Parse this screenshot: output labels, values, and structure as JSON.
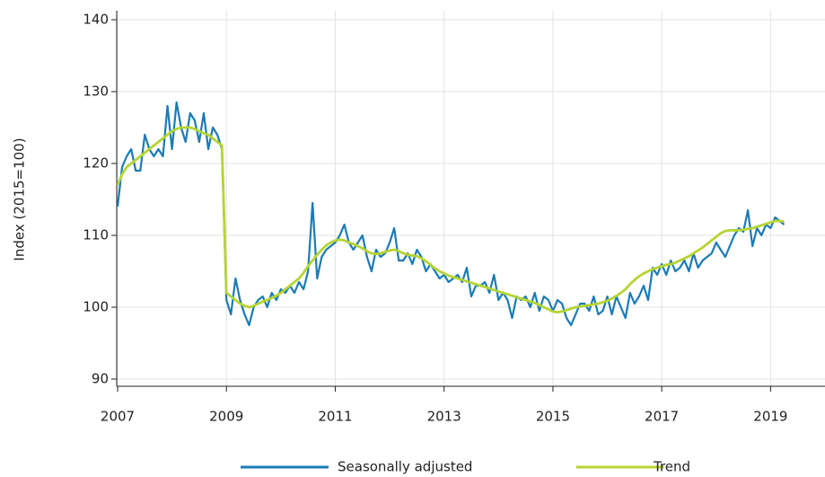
{
  "chart_data": {
    "type": "line",
    "y_label": "Index (2015=100)",
    "xlim": [
      2007,
      2020
    ],
    "xticks": [
      2007,
      2009,
      2011,
      2013,
      2015,
      2017,
      2019
    ],
    "ylim": [
      90,
      140
    ],
    "yticks": [
      90,
      100,
      110,
      120,
      130,
      140
    ],
    "grid": true,
    "legend": "bottom",
    "x": [
      2007,
      2007.083,
      2007.167,
      2007.25,
      2007.333,
      2007.417,
      2007.5,
      2007.583,
      2007.667,
      2007.75,
      2007.833,
      2007.917,
      2008,
      2008.083,
      2008.167,
      2008.25,
      2008.333,
      2008.417,
      2008.5,
      2008.583,
      2008.667,
      2008.75,
      2008.833,
      2008.917,
      2009,
      2009.083,
      2009.167,
      2009.25,
      2009.333,
      2009.417,
      2009.5,
      2009.583,
      2009.667,
      2009.75,
      2009.833,
      2009.917,
      2010,
      2010.083,
      2010.167,
      2010.25,
      2010.333,
      2010.417,
      2010.5,
      2010.583,
      2010.667,
      2010.75,
      2010.833,
      2010.917,
      2011,
      2011.083,
      2011.167,
      2011.25,
      2011.333,
      2011.417,
      2011.5,
      2011.583,
      2011.667,
      2011.75,
      2011.833,
      2011.917,
      2012,
      2012.083,
      2012.167,
      2012.25,
      2012.333,
      2012.417,
      2012.5,
      2012.583,
      2012.667,
      2012.75,
      2012.833,
      2012.917,
      2013,
      2013.083,
      2013.167,
      2013.25,
      2013.333,
      2013.417,
      2013.5,
      2013.583,
      2013.667,
      2013.75,
      2013.833,
      2013.917,
      2014,
      2014.083,
      2014.167,
      2014.25,
      2014.333,
      2014.417,
      2014.5,
      2014.583,
      2014.667,
      2014.75,
      2014.833,
      2014.917,
      2015,
      2015.083,
      2015.167,
      2015.25,
      2015.333,
      2015.417,
      2015.5,
      2015.583,
      2015.667,
      2015.75,
      2015.833,
      2015.917,
      2016,
      2016.083,
      2016.167,
      2016.25,
      2016.333,
      2016.417,
      2016.5,
      2016.583,
      2016.667,
      2016.75,
      2016.833,
      2016.917,
      2017,
      2017.083,
      2017.167,
      2017.25,
      2017.333,
      2017.417,
      2017.5,
      2017.583,
      2017.667,
      2017.75,
      2017.833,
      2017.917,
      2018,
      2018.083,
      2018.167,
      2018.25,
      2018.333,
      2018.417,
      2018.5,
      2018.583,
      2018.667,
      2018.75,
      2018.833,
      2018.917,
      2019,
      2019.083,
      2019.167,
      2019.25
    ],
    "series": [
      {
        "name": "Seasonally adjusted",
        "color": "#1b7bb6",
        "values": [
          114,
          119.5,
          121,
          122,
          119,
          119,
          124,
          122,
          121,
          122,
          121,
          128,
          122,
          128.5,
          125,
          123,
          127,
          126,
          123,
          127,
          122,
          125,
          124,
          122,
          101,
          99,
          104,
          101,
          99,
          97.5,
          100,
          101,
          101.5,
          100,
          102,
          101,
          102.5,
          102,
          103,
          102,
          103.5,
          102.5,
          105,
          114.5,
          104,
          107,
          108,
          108.5,
          109,
          110,
          111.5,
          109,
          108,
          109,
          110,
          107,
          105,
          108,
          107,
          107.5,
          109,
          111,
          106.5,
          106.5,
          107.5,
          106,
          108,
          107,
          105,
          106,
          105,
          104,
          104.5,
          103.5,
          104,
          104.5,
          103.5,
          105.5,
          101.5,
          103,
          103,
          103.5,
          102,
          104.5,
          101,
          102,
          101,
          98.5,
          101.5,
          101,
          101.5,
          100,
          102,
          99.5,
          101.5,
          101,
          99.5,
          101,
          100.5,
          98.5,
          97.5,
          99,
          100.5,
          100.5,
          99.5,
          101.5,
          99,
          99.5,
          101.5,
          99,
          101.5,
          100,
          98.5,
          102,
          100.5,
          101.5,
          103,
          101,
          105.5,
          104.5,
          106,
          104.5,
          106.5,
          105,
          105.5,
          106.5,
          105,
          107.5,
          105.5,
          106.5,
          107,
          107.5,
          109,
          108,
          107,
          108.5,
          110,
          111,
          110.5,
          113.5,
          108.5,
          111,
          110,
          111.5,
          111,
          112.5,
          112,
          111.5
        ]
      },
      {
        "name": "Trend",
        "color": "#b6d433",
        "values": [
          117,
          118.5,
          119.5,
          120,
          120.5,
          121,
          121.5,
          122,
          122.5,
          123,
          123.5,
          124,
          124.5,
          124.8,
          125,
          125,
          125,
          124.8,
          124.5,
          124.2,
          124,
          123.5,
          123,
          122.5,
          102,
          101.5,
          101,
          100.5,
          100.2,
          100,
          100.2,
          100.5,
          100.8,
          101,
          101.3,
          101.6,
          102,
          102.5,
          103,
          103.5,
          104,
          104.8,
          105.7,
          106.5,
          107.3,
          108,
          108.6,
          109,
          109.3,
          109.4,
          109.3,
          109,
          108.8,
          108.5,
          108.2,
          107.8,
          107.5,
          107.4,
          107.5,
          107.7,
          107.9,
          108,
          107.8,
          107.5,
          107.3,
          107.2,
          107.1,
          106.8,
          106.4,
          105.9,
          105.4,
          105,
          104.7,
          104.4,
          104.2,
          104,
          103.8,
          103.6,
          103.4,
          103.2,
          103,
          102.8,
          102.6,
          102.4,
          102.2,
          102,
          101.8,
          101.6,
          101.4,
          101.2,
          101,
          100.8,
          100.6,
          100.3,
          100,
          99.7,
          99.4,
          99.3,
          99.4,
          99.6,
          99.8,
          100,
          100.1,
          100.2,
          100.3,
          100.4,
          100.5,
          100.7,
          100.9,
          101.2,
          101.6,
          102,
          102.5,
          103.2,
          103.8,
          104.3,
          104.7,
          105,
          105.3,
          105.5,
          105.7,
          105.9,
          106,
          106.2,
          106.5,
          106.8,
          107.1,
          107.5,
          107.9,
          108.3,
          108.8,
          109.3,
          109.8,
          110.3,
          110.6,
          110.7,
          110.7,
          110.7,
          110.8,
          110.9,
          111,
          111.2,
          111.4,
          111.6,
          111.8,
          112,
          112,
          111.9
        ]
      }
    ]
  }
}
